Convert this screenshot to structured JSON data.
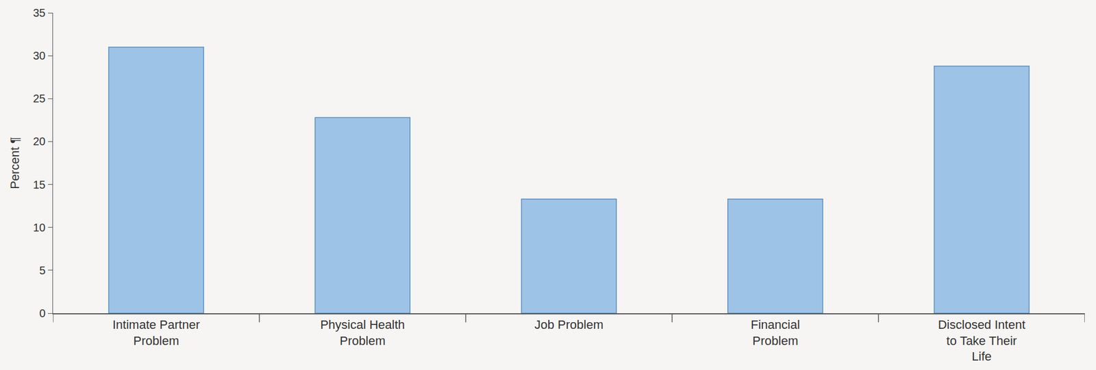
{
  "chart_data": {
    "type": "bar",
    "categories": [
      "Intimate Partner Problem",
      "Physical Health Problem",
      "Job Problem",
      "Financial Problem",
      "Disclosed Intent to Take Their Life"
    ],
    "values": [
      31,
      22.8,
      13.3,
      13.3,
      28.8
    ],
    "color": "#9dc3e6",
    "y_label": "Percent ¶",
    "ylim": [
      0,
      35
    ],
    "yticks": [
      0,
      5,
      10,
      15,
      20,
      25,
      30,
      35
    ],
    "grid": false
  }
}
